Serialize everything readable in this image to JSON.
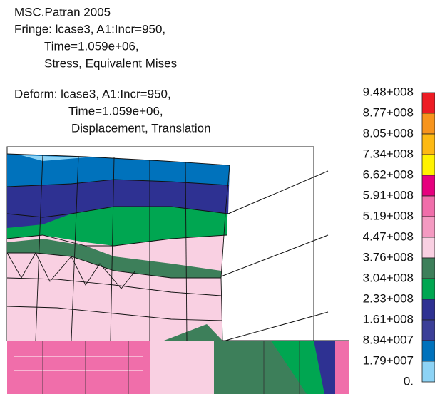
{
  "header": {
    "title": "MSC.Patran 2005",
    "fringe": [
      "Fringe: lcase3, A1:Incr=950,",
      "Time=1.059e+06,",
      "Stress, Equivalent Mises"
    ],
    "deform": [
      "Deform: lcase3, A1:Incr=950,",
      "Time=1.059e+06,",
      "Displacement, Translation"
    ]
  },
  "legend": {
    "labels": [
      "9.48+008",
      "8.77+008",
      "8.05+008",
      "7.34+008",
      "6.62+008",
      "5.91+008",
      "5.19+008",
      "4.47+008",
      "3.76+008",
      "3.04+008",
      "2.33+008",
      "1.61+008",
      "8.94+007",
      "1.79+007",
      "0."
    ],
    "colors": [
      "#ed1c24",
      "#f7941d",
      "#fdb913",
      "#fff200",
      "#e6007e",
      "#f06eaa",
      "#f49ac1",
      "#f9d0e2",
      "#3d7f5a",
      "#00a651",
      "#2e3192",
      "#3b3f98",
      "#0072bc",
      "#8dd3f5"
    ]
  }
}
